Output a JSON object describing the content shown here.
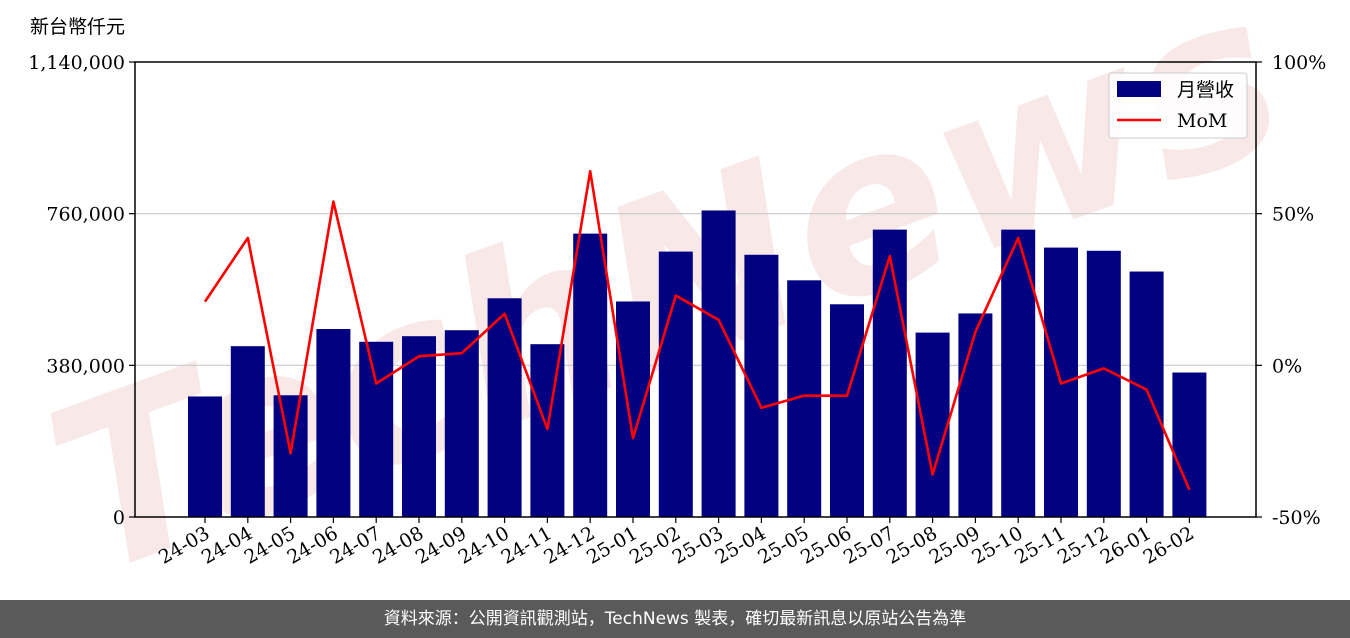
{
  "chart_data": {
    "type": "bar",
    "unit_label": "新台幣仟元",
    "categories": [
      "24-03",
      "24-04",
      "24-05",
      "24-06",
      "24-07",
      "24-08",
      "24-09",
      "24-10",
      "24-11",
      "24-12",
      "25-01",
      "25-02",
      "25-03",
      "25-04",
      "25-05",
      "25-06",
      "25-07",
      "25-08",
      "25-09",
      "25-10",
      "25-11",
      "25-12",
      "26-01",
      "26-02"
    ],
    "series": [
      {
        "name": "月營收",
        "type": "bar",
        "axis": "left",
        "color": "#000080",
        "values": [
          302000,
          428000,
          305000,
          471000,
          439000,
          453000,
          468000,
          548000,
          433000,
          710000,
          540000,
          665000,
          768000,
          657000,
          593000,
          533000,
          720000,
          462000,
          510000,
          720000,
          675000,
          667000,
          615000,
          362000
        ]
      },
      {
        "name": "MoM",
        "type": "line",
        "axis": "right",
        "color": "#ff0000",
        "values": [
          21,
          42,
          -29,
          54,
          -6,
          3,
          4,
          17,
          -21,
          64,
          -24,
          23,
          15,
          -14,
          -10,
          -10,
          36,
          -36,
          11,
          42,
          -6,
          -1,
          -8,
          -41
        ]
      }
    ],
    "y_left": {
      "ticks": [
        0,
        380000,
        760000,
        1140000
      ],
      "tick_labels": [
        "0",
        "380,000",
        "760,000",
        "1,140,000"
      ],
      "lim": [
        0,
        1140000
      ]
    },
    "y_right": {
      "ticks": [
        -50,
        0,
        50,
        100
      ],
      "tick_labels": [
        "-50%",
        "0%",
        "50%",
        "100%"
      ],
      "lim": [
        -50,
        100
      ]
    },
    "grid": "horizontal",
    "legend_position": "top-right"
  },
  "watermark": "TechNews",
  "footer": {
    "source_text": "資料來源：公開資訊觀測站，TechNews 製表，確切最新訊息以原站公告為準"
  }
}
